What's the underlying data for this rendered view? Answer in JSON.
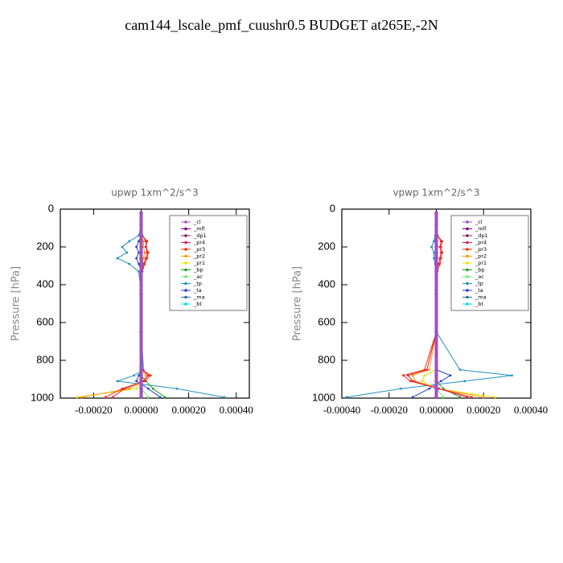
{
  "title": "cam144_lscale_pmf_cuushr0.5  BUDGET at265E,-2N",
  "chart_data": [
    {
      "type": "line",
      "title": "upwp   1xm^2/s^3",
      "ylabel": "Pressure [hPa]",
      "xlim": [
        -0.00034,
        0.000455
      ],
      "ylim": [
        1000,
        0
      ],
      "xticks": [
        {
          "value": -0.0002,
          "label": "-0.00020"
        },
        {
          "value": 0,
          "label": "0.00000"
        },
        {
          "value": 0.0002,
          "label": "0.00020"
        },
        {
          "value": 0.0004,
          "label": "0.00040"
        }
      ],
      "yticks": [
        0,
        200,
        400,
        600,
        800,
        1000
      ],
      "y": [
        20,
        80,
        140,
        170,
        200,
        230,
        260,
        290,
        330,
        450,
        650,
        850,
        880,
        910,
        950,
        995
      ],
      "series": [
        {
          "name": "_cl",
          "color": "#a050c0",
          "values": [
            0,
            0,
            0,
            0,
            0,
            0,
            0,
            0,
            0,
            0,
            0,
            0,
            0,
            0,
            0,
            0
          ]
        },
        {
          "name": "_mfl",
          "color": "#800080",
          "values": [
            0,
            0,
            0,
            0,
            0,
            0,
            0,
            0,
            0,
            0,
            0,
            0,
            0,
            0,
            0,
            0
          ]
        },
        {
          "name": "_dp1",
          "color": "#8b1a4a",
          "values": [
            0,
            0,
            0,
            0,
            0,
            0,
            0,
            0,
            0,
            0,
            0,
            0,
            0,
            0,
            0,
            0
          ]
        },
        {
          "name": "_pr4",
          "color": "#e0204a",
          "values": [
            0,
            0,
            5e-06,
            2e-05,
            2e-05,
            2.5e-05,
            2e-05,
            1e-05,
            5e-06,
            0,
            0,
            5e-06,
            3e-05,
            1e-05,
            -7e-05,
            -0.00012
          ]
        },
        {
          "name": "_pr3",
          "color": "#ff3000",
          "values": [
            0,
            0,
            5e-06,
            2.5e-05,
            2e-05,
            3e-05,
            2.5e-05,
            1.5e-05,
            5e-06,
            0,
            0,
            5e-06,
            4e-05,
            1.5e-05,
            -8e-05,
            -0.00015
          ]
        },
        {
          "name": "_pr2",
          "color": "#ff9900",
          "values": [
            0,
            0,
            0,
            1e-05,
            1e-05,
            1.5e-05,
            1e-05,
            5e-06,
            0,
            0,
            0,
            0,
            2e-05,
            1e-05,
            -5e-05,
            -0.00025
          ]
        },
        {
          "name": "_pr1",
          "color": "#e8e000",
          "values": [
            0,
            0,
            0,
            0,
            0,
            0,
            0,
            0,
            0,
            0,
            0,
            0,
            0,
            0,
            -2e-05,
            -0.00027
          ]
        },
        {
          "name": "_bp",
          "color": "#20a020",
          "values": [
            0,
            0,
            0,
            0,
            0,
            0,
            0,
            0,
            0,
            0,
            0,
            0,
            0,
            2e-05,
            5e-05,
            0.0001
          ]
        },
        {
          "name": "_ac",
          "color": "#66ee66",
          "values": [
            0,
            0,
            0,
            0,
            0,
            0,
            0,
            0,
            0,
            0,
            0,
            0,
            0,
            0,
            0,
            3e-05
          ]
        },
        {
          "name": "_tp",
          "color": "#2090c0",
          "values": [
            0,
            0,
            -1e-05,
            -5e-05,
            -8e-05,
            -6e-05,
            -0.0001,
            -5e-05,
            -1e-05,
            0,
            0,
            1e-05,
            -3e-05,
            -0.0001,
            0.00015,
            0.00035
          ]
        },
        {
          "name": "_ta",
          "color": "#2040d0",
          "values": [
            0,
            0,
            0,
            -1e-05,
            -2e-05,
            -1e-05,
            -2e-05,
            -1e-05,
            0,
            0,
            0,
            0,
            -1e-05,
            -2e-05,
            3e-05,
            8e-05
          ]
        },
        {
          "name": "_ma",
          "color": "#3070a0",
          "values": [
            0,
            0,
            0,
            0,
            0,
            0,
            0,
            0,
            0,
            0,
            0,
            0,
            0,
            0,
            0,
            0
          ]
        },
        {
          "name": "_bt",
          "color": "#00dddd",
          "values": [
            0,
            0,
            0,
            0,
            0,
            0,
            0,
            0,
            0,
            0,
            0,
            0,
            0,
            0,
            0,
            0
          ]
        }
      ]
    },
    {
      "type": "line",
      "title": "vpwp   1xm^2/s^3",
      "ylabel": "Pressure [hPa]",
      "xlim": [
        -0.0004,
        0.0004
      ],
      "ylim": [
        1000,
        0
      ],
      "xticks": [
        {
          "value": -0.0004,
          "label": "-0.00040"
        },
        {
          "value": -0.0002,
          "label": "-0.00020"
        },
        {
          "value": 0,
          "label": "0.00000"
        },
        {
          "value": 0.0002,
          "label": "0.00020"
        },
        {
          "value": 0.0004,
          "label": "0.00040"
        }
      ],
      "yticks": [
        0,
        200,
        400,
        600,
        800,
        1000
      ],
      "y": [
        20,
        80,
        140,
        170,
        200,
        230,
        260,
        290,
        330,
        450,
        650,
        850,
        880,
        910,
        950,
        995
      ],
      "series": [
        {
          "name": "_cl",
          "color": "#a050c0",
          "values": [
            0,
            0,
            0,
            0,
            0,
            0,
            0,
            0,
            0,
            0,
            0,
            0,
            0,
            0,
            0,
            0
          ]
        },
        {
          "name": "_mfl",
          "color": "#800080",
          "values": [
            0,
            0,
            0,
            0,
            0,
            0,
            0,
            0,
            0,
            0,
            0,
            0,
            0,
            0,
            0,
            0
          ]
        },
        {
          "name": "_dp1",
          "color": "#8b1a4a",
          "values": [
            0,
            0,
            0,
            0,
            0,
            0,
            0,
            0,
            0,
            0,
            0,
            0,
            0,
            0,
            0,
            0
          ]
        },
        {
          "name": "_pr4",
          "color": "#e0204a",
          "values": [
            0,
            0,
            5e-06,
            2e-05,
            1.5e-05,
            2e-05,
            1.5e-05,
            1e-05,
            0,
            0,
            0,
            -4e-05,
            -0.00012,
            -0.0001,
            1e-05,
            0.00013
          ]
        },
        {
          "name": "_pr3",
          "color": "#ff3000",
          "values": [
            0,
            0,
            5e-06,
            2.5e-05,
            2e-05,
            2.5e-05,
            2e-05,
            1.5e-05,
            5e-06,
            0,
            0,
            -5e-05,
            -0.00014,
            -0.00011,
            1e-05,
            0.00015
          ]
        },
        {
          "name": "_pr2",
          "color": "#ff9900",
          "values": [
            0,
            0,
            0,
            0,
            0,
            0,
            0,
            0,
            0,
            0,
            0,
            -3e-05,
            -0.0001,
            -9e-05,
            1e-05,
            0.0002
          ]
        },
        {
          "name": "_pr1",
          "color": "#e8e000",
          "values": [
            0,
            0,
            0,
            0,
            0,
            0,
            0,
            0,
            0,
            0,
            0,
            0,
            -5e-05,
            -6e-05,
            0,
            0.00025
          ]
        },
        {
          "name": "_bp",
          "color": "#20a020",
          "values": [
            0,
            0,
            0,
            0,
            0,
            0,
            0,
            0,
            0,
            0,
            0,
            0,
            0,
            0,
            3e-05,
            0.0001
          ]
        },
        {
          "name": "_ac",
          "color": "#66ee66",
          "values": [
            0,
            0,
            0,
            0,
            0,
            0,
            0,
            0,
            0,
            0,
            0,
            0,
            0,
            0,
            0,
            3e-05
          ]
        },
        {
          "name": "_tp",
          "color": "#2090c0",
          "values": [
            0,
            0,
            -5e-06,
            -1e-05,
            -2e-05,
            -1e-05,
            -1e-05,
            -5e-06,
            0,
            0,
            0,
            0.0001,
            0.00032,
            0.00012,
            -0.00015,
            -0.00038
          ]
        },
        {
          "name": "_ta",
          "color": "#2040d0",
          "values": [
            0,
            0,
            0,
            0,
            0,
            0,
            0,
            0,
            0,
            0,
            0,
            0,
            6e-05,
            2e-05,
            -3e-05,
            -0.0001
          ]
        },
        {
          "name": "_ma",
          "color": "#3070a0",
          "values": [
            0,
            0,
            0,
            0,
            0,
            0,
            0,
            0,
            0,
            0,
            0,
            0,
            0,
            0,
            0,
            0
          ]
        },
        {
          "name": "_bt",
          "color": "#00dddd",
          "values": [
            0,
            0,
            0,
            0,
            0,
            0,
            0,
            0,
            0,
            0,
            0,
            0,
            0,
            0,
            0,
            0
          ]
        }
      ]
    }
  ]
}
